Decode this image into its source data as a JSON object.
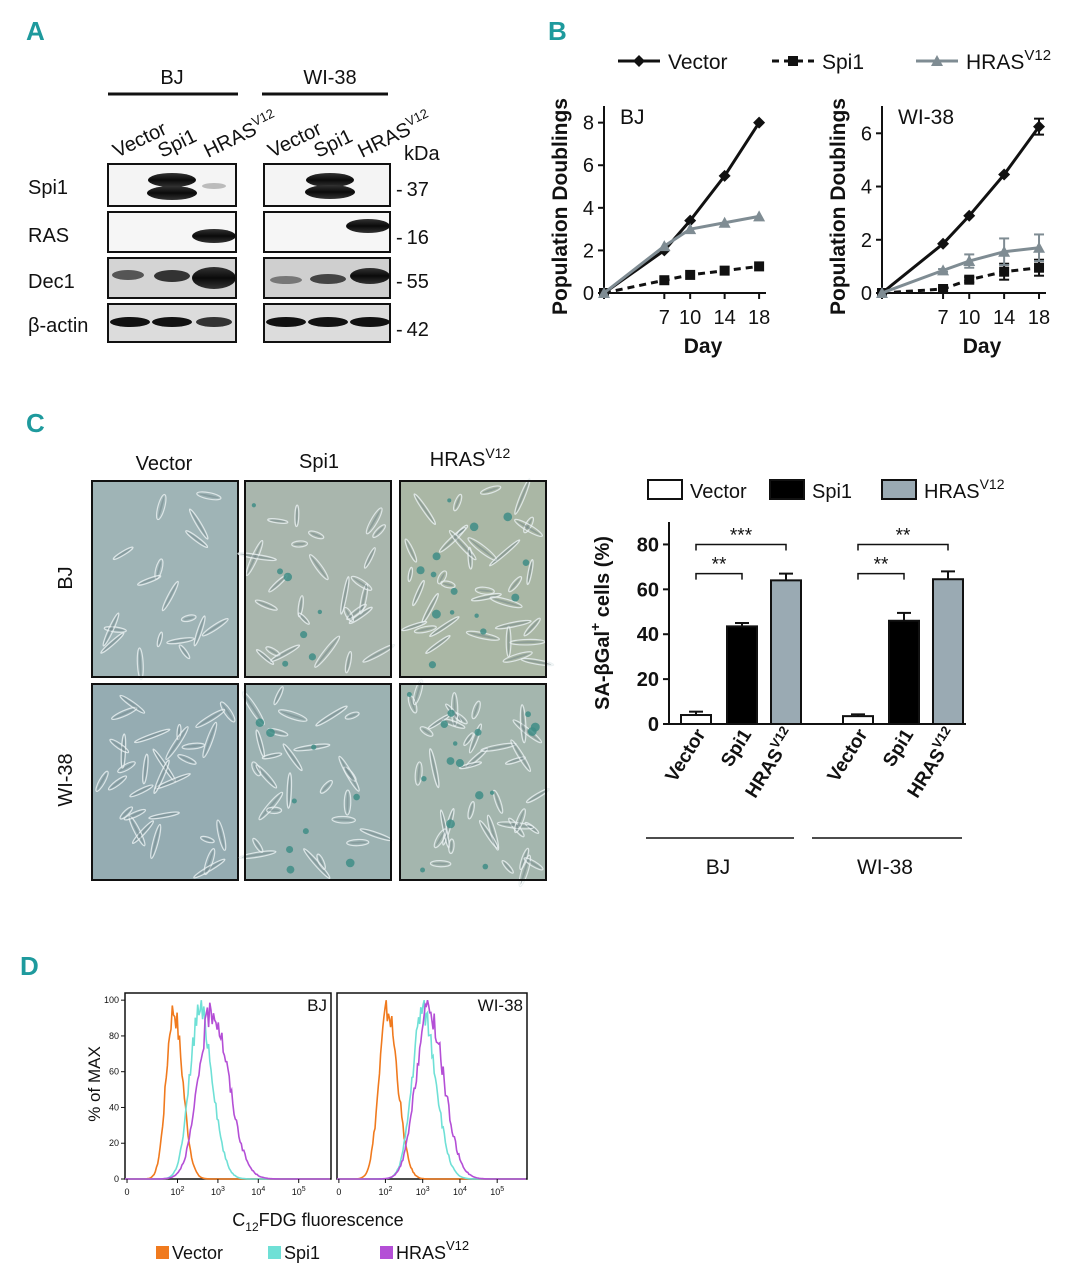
{
  "panels": {
    "A": "A",
    "B": "B",
    "C": "C",
    "D": "D"
  },
  "western": {
    "cells": [
      "BJ",
      "WI-38"
    ],
    "lanes": [
      "Vector",
      "Spi1",
      "HRAS"
    ],
    "lane_superscript": "V12",
    "rows": [
      "Spi1",
      "RAS",
      "Dec1",
      "β-actin"
    ],
    "kda_label": "kDa",
    "markers": [
      "37",
      "16",
      "55",
      "42"
    ],
    "marker_dash": "-"
  },
  "microscopy": {
    "columns": [
      "Vector",
      "Spi1",
      "HRAS"
    ],
    "column_superscript": "V12",
    "rows": [
      "BJ",
      "WI-38"
    ]
  },
  "colors": {
    "vector_line": "#111111",
    "spi1_line": "#111111",
    "hras_line": "#7f8c93",
    "bar_vector": "#ffffff",
    "bar_spi1": "#000000",
    "bar_hras": "#9aaab3",
    "flow_vector": "#f07a1e",
    "flow_spi1": "#6fe0d6",
    "flow_hras": "#b44fd6",
    "panel_label": "#1e9a9d"
  },
  "chart_data": [
    {
      "id": "growth",
      "type": "line",
      "legend": {
        "series": [
          "Vector",
          "Spi1",
          "HRAS"
        ],
        "superscript": "V12"
      },
      "xlabel": "Day",
      "ylabel": "Population Doublings",
      "x": [
        0,
        7,
        10,
        14,
        18
      ],
      "x_ticks": [
        "7",
        "10",
        "14",
        "18"
      ],
      "plots": [
        {
          "title": "BJ",
          "ylim": [
            0,
            8.5
          ],
          "y_ticks": [
            "0",
            "2",
            "4",
            "6",
            "8"
          ],
          "series": [
            {
              "name": "Vector",
              "values": [
                0,
                2.0,
                3.4,
                5.5,
                8.0
              ],
              "err": [
                0,
                0,
                0,
                0,
                0
              ]
            },
            {
              "name": "Spi1",
              "values": [
                0,
                0.6,
                0.85,
                1.05,
                1.25
              ],
              "err": [
                0,
                0,
                0,
                0,
                0
              ]
            },
            {
              "name": "HRAS",
              "values": [
                0,
                2.2,
                3.0,
                3.3,
                3.6
              ],
              "err": [
                0,
                0,
                0,
                0,
                0
              ]
            }
          ]
        },
        {
          "title": "WI-38",
          "ylim": [
            0,
            6.8
          ],
          "y_ticks": [
            "0",
            "2",
            "4",
            "6"
          ],
          "series": [
            {
              "name": "Vector",
              "values": [
                0,
                1.85,
                2.9,
                4.45,
                6.25
              ],
              "err": [
                0,
                0,
                0,
                0,
                0.3
              ]
            },
            {
              "name": "Spi1",
              "values": [
                0,
                0.15,
                0.5,
                0.8,
                0.95
              ],
              "err": [
                0,
                0.05,
                0.1,
                0.3,
                0.3
              ]
            },
            {
              "name": "HRAS",
              "values": [
                0,
                0.85,
                1.2,
                1.55,
                1.7
              ],
              "err": [
                0,
                0.05,
                0.25,
                0.5,
                0.5
              ]
            }
          ]
        }
      ]
    },
    {
      "id": "sabgal",
      "type": "bar",
      "legend": {
        "series": [
          "Vector",
          "Spi1",
          "HRAS"
        ],
        "superscript": "V12"
      },
      "ylabel": "SA-βGal",
      "ylabel_sup": "+",
      "ylabel_tail": " cells (%)",
      "ylim": [
        0,
        90
      ],
      "y_ticks": [
        "0",
        "20",
        "40",
        "60",
        "80"
      ],
      "groups": [
        {
          "name": "BJ",
          "bars": [
            {
              "label": "Vector",
              "value": 4,
              "err": 1.5
            },
            {
              "label": "Spi1",
              "value": 43.5,
              "err": 1.5
            },
            {
              "label": "HRAS",
              "value": 64,
              "err": 3
            }
          ],
          "sig": [
            "***",
            "**"
          ]
        },
        {
          "name": "WI-38",
          "bars": [
            {
              "label": "Vector",
              "value": 3.5,
              "err": 0.8
            },
            {
              "label": "Spi1",
              "value": 46,
              "err": 3.5
            },
            {
              "label": "HRAS",
              "value": 64.5,
              "err": 3.5
            }
          ],
          "sig": [
            "**",
            "**"
          ]
        }
      ],
      "bar_superscript": "V12"
    },
    {
      "id": "flow",
      "type": "area",
      "ylabel": "% of MAX",
      "xlabel_main": "C",
      "xlabel_sub": "12",
      "xlabel_tail": "FDG fluorescence",
      "y_ticks": [
        "0",
        "20",
        "40",
        "60",
        "80",
        "100"
      ],
      "x_ticks": [
        "0",
        "10",
        "10",
        "10",
        "10"
      ],
      "x_tick_exp": [
        "",
        "2",
        "3",
        "4",
        "5"
      ],
      "legend": {
        "series": [
          "Vector",
          "Spi1",
          "HRAS"
        ],
        "superscript": "V12"
      },
      "plots": [
        {
          "title": "BJ",
          "series": [
            {
              "name": "Vector",
              "peak_log10": 1.9,
              "width": 0.18,
              "max": 100
            },
            {
              "name": "Spi1",
              "peak_log10": 2.55,
              "width": 0.25,
              "max": 100
            },
            {
              "name": "HRAS",
              "peak_log10": 2.85,
              "width": 0.33,
              "max": 100
            }
          ]
        },
        {
          "title": "WI-38",
          "series": [
            {
              "name": "Vector",
              "peak_log10": 2.05,
              "width": 0.22,
              "max": 100
            },
            {
              "name": "Spi1",
              "peak_log10": 3.0,
              "width": 0.28,
              "max": 100
            },
            {
              "name": "HRAS",
              "peak_log10": 3.15,
              "width": 0.33,
              "max": 100
            }
          ]
        }
      ]
    }
  ]
}
